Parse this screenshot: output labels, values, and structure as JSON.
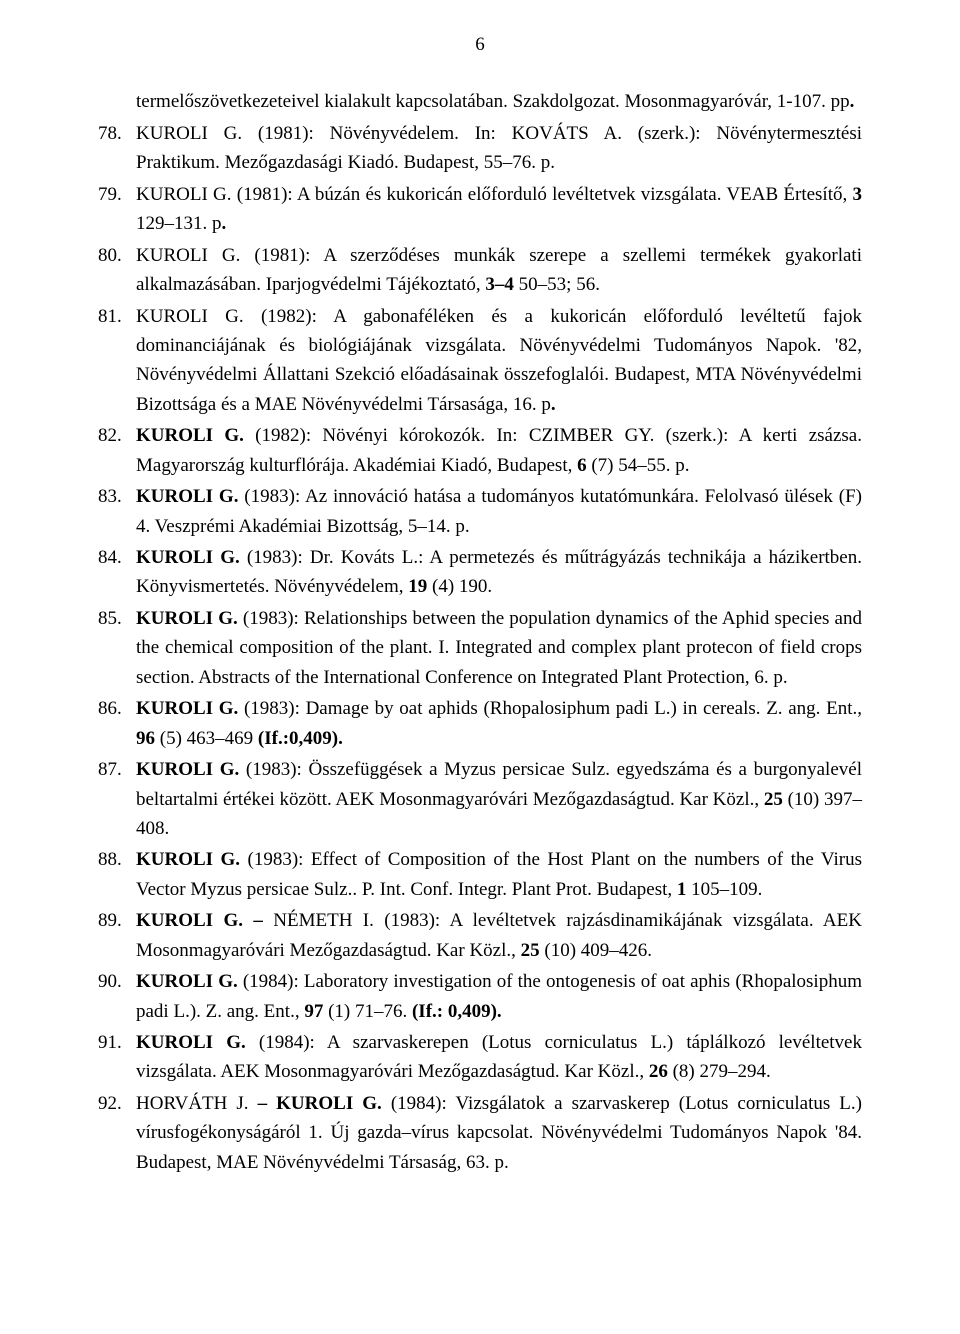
{
  "page_number": "6",
  "entries": [
    {
      "num": "",
      "html": "termelőszövetkezeteivel kialakult kapcsolatában. Szakdolgozat. Mosonmagyaróvár, 1-107. pp<b>.</b>",
      "continuation": true
    },
    {
      "num": "78.",
      "html": "KUROLI G. (1981): Növényvédelem. In: KOVÁTS A. (szerk.): Növénytermesztési Praktikum. Mezőgazdasági Kiadó. Budapest, 55–76. p."
    },
    {
      "num": "79.",
      "html": "KUROLI G. (1981): A búzán és kukoricán előforduló levéltetvek vizsgálata. VEAB Értesítő, <b>3</b> 129–131. p<b>.</b>"
    },
    {
      "num": "80.",
      "html": "KUROLI G. (1981): A szerződéses munkák szerepe a szellemi termékek gyakorlati alkalmazásában. Iparjogvédelmi Tájékoztató, <b>3–4</b> 50–53; 56."
    },
    {
      "num": "81.",
      "html": "KUROLI G. (1982): A gabonaféléken és a kukoricán előforduló levéltetű fajok dominanciájának és biológiájának vizsgálata. Növényvédelmi Tudományos Napok. '82, Növényvédelmi Állattani Szekció előadásainak összefoglalói. Budapest, MTA Növényvédelmi Bizottsága és a MAE Növényvédelmi Társasága, 16. p<b>.</b>"
    },
    {
      "num": "82.",
      "html": "<b>KUROLI G.</b> (1982): Növényi kórokozók. In: CZIMBER GY. (szerk.): A kerti zsázsa. Magyarország kulturflórája. Akadémiai Kiadó, Budapest, <b>6</b> (7) 54–55. p."
    },
    {
      "num": "83.",
      "html": "<b>KUROLI G.</b> (1983): Az innováció hatása a tudományos kutatómunkára. Felolvasó ülések (F) 4. Veszprémi Akadémiai Bizottság, 5–14. p."
    },
    {
      "num": "84.",
      "html": "<b>KUROLI G.</b> (1983): Dr. Kováts L.: A permetezés és műtrágyázás technikája a házikertben. Könyvismertetés. Növényvédelem, <b>19</b> (4) 190."
    },
    {
      "num": "85.",
      "html": "<b>KUROLI G.</b> (1983): Relationships between the population dynamics of the Aphid species and the chemical composition of the plant. I. Integrated and complex plant protecon of field crops section. Abstracts of the International Conference on Integrated Plant Protection, 6. p."
    },
    {
      "num": "86.",
      "html": "<b>KUROLI G.</b> (1983): Damage by oat aphids (Rhopalosiphum padi L.) in cereals. Z. ang. Ent., <b>96</b> (5) 463–469 <b>(If.:0,409).</b>"
    },
    {
      "num": "87.",
      "html": "<b>KUROLI G.</b> (1983): Összefüggések a Myzus persicae Sulz. egyedszáma és a burgonyalevél beltartalmi értékei között. AEK Mosonmagyaróvári Mezőgazdaságtud. Kar Közl., <b>25</b> (10) 397–408."
    },
    {
      "num": "88.",
      "html": "<b>KUROLI G.</b> (1983): Effect of Composition of the Host Plant on the numbers of the Virus Vector Myzus persicae Sulz.. P. Int. Conf. Integr. Plant Prot. Budapest, <b>1</b> 105–109."
    },
    {
      "num": "89.",
      "html": "<b>KUROLI G. – </b>NÉMETH I. (1983): A levéltetvek rajzásdinamikájának vizsgálata. AEK Mosonmagyaróvári Mezőgazdaságtud. Kar Közl., <b>25</b> (10) 409–426."
    },
    {
      "num": "90.",
      "html": "<b>KUROLI G.</b> (1984): Laboratory investigation of the ontogenesis of oat aphis (Rhopalosiphum padi L.). Z. ang. Ent., <b>97</b> (1) 71–76. <b>(If.: 0,409).</b>"
    },
    {
      "num": "91.",
      "html": "<b>KUROLI G.</b> (1984): A szarvaskerepen (Lotus corniculatus L.) táplálkozó levéltetvek vizsgálata. AEK Mosonmagyaróvári Mezőgazdaságtud. Kar Közl., <b>26</b> (8) 279–294."
    },
    {
      "num": "92.",
      "html": "HORVÁTH J. <b>– KUROLI G.</b> (1984): Vizsgálatok a szarvaskerep (Lotus corniculatus L.) vírusfogékonyságáról 1. Új gazda–vírus kapcsolat. Növényvédelmi Tudományos Napok '84. Budapest, MAE Növényvédelmi Társaság, 63. p."
    }
  ]
}
